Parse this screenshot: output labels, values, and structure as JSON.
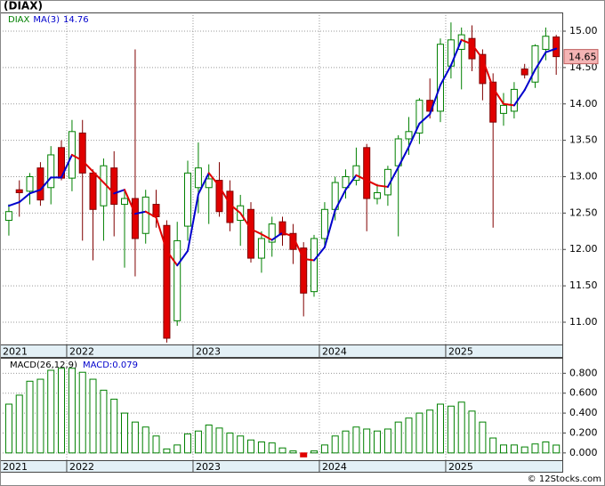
{
  "chart_data": [
    {
      "type": "candlestick",
      "title": "(DIAX)",
      "x": [
        2021.542,
        2021.625,
        2021.708,
        2021.792,
        2021.875,
        2021.958,
        2022.042,
        2022.125,
        2022.208,
        2022.292,
        2022.375,
        2022.458,
        2022.542,
        2022.625,
        2022.708,
        2022.792,
        2022.875,
        2022.958,
        2023.042,
        2023.125,
        2023.208,
        2023.292,
        2023.375,
        2023.458,
        2023.542,
        2023.625,
        2023.708,
        2023.792,
        2023.875,
        2023.958,
        2024.042,
        2024.125,
        2024.208,
        2024.292,
        2024.375,
        2024.458,
        2024.542,
        2024.625,
        2024.708,
        2024.792,
        2024.875,
        2024.958,
        2025.042,
        2025.125,
        2025.208,
        2025.292,
        2025.375,
        2025.458,
        2025.542,
        2025.625,
        2025.708,
        2025.792,
        2025.875
      ],
      "series": [
        {
          "name": "DIAX",
          "up_color": "#008000",
          "down_color": "#e00000",
          "open": [
            12.4,
            12.82,
            12.8,
            13.12,
            12.85,
            13.4,
            12.98,
            13.6,
            13.05,
            12.6,
            13.12,
            12.62,
            12.7,
            12.22,
            12.62,
            12.33,
            11.02,
            12.32,
            12.85,
            12.85,
            12.95,
            12.8,
            12.4,
            12.55,
            11.88,
            12.1,
            12.38,
            12.22,
            12.02,
            11.42,
            12.15,
            12.55,
            12.85,
            12.95,
            13.4,
            12.7,
            12.75,
            13.15,
            13.52,
            13.6,
            14.05,
            13.9,
            14.52,
            14.75,
            14.9,
            14.68,
            14.3,
            13.87,
            13.9,
            14.48,
            14.3,
            14.75,
            14.92
          ],
          "high": [
            12.62,
            12.95,
            13.05,
            13.2,
            13.42,
            13.5,
            13.78,
            13.78,
            13.1,
            13.25,
            13.35,
            12.8,
            14.75,
            12.82,
            12.82,
            12.4,
            12.38,
            13.22,
            13.47,
            13.17,
            13.2,
            12.95,
            12.75,
            12.65,
            12.25,
            12.45,
            12.45,
            12.35,
            12.1,
            12.2,
            12.65,
            13.0,
            13.1,
            13.4,
            13.45,
            12.9,
            13.15,
            13.57,
            13.82,
            14.08,
            14.35,
            14.9,
            15.12,
            15.05,
            15.08,
            14.75,
            14.42,
            14.15,
            14.3,
            14.55,
            14.82,
            15.05,
            14.95
          ],
          "low": [
            12.19,
            12.45,
            12.62,
            12.6,
            12.62,
            12.95,
            12.8,
            12.12,
            11.85,
            12.12,
            12.18,
            11.75,
            11.63,
            12.08,
            12.3,
            10.72,
            10.95,
            12.12,
            12.5,
            12.35,
            12.45,
            12.25,
            12.05,
            11.82,
            11.68,
            11.9,
            12.05,
            11.8,
            11.08,
            11.35,
            12.02,
            12.4,
            12.7,
            12.88,
            12.25,
            12.62,
            12.6,
            12.18,
            13.3,
            13.45,
            13.8,
            13.75,
            14.35,
            14.2,
            14.45,
            14.05,
            12.3,
            13.7,
            13.8,
            14.35,
            14.22,
            14.6,
            14.4
          ],
          "close": [
            12.52,
            12.78,
            13.0,
            12.68,
            13.3,
            12.98,
            13.62,
            13.05,
            12.55,
            13.15,
            12.62,
            12.7,
            12.15,
            12.72,
            12.45,
            10.78,
            12.12,
            13.05,
            13.12,
            12.97,
            12.52,
            12.37,
            12.6,
            11.88,
            12.15,
            12.35,
            12.2,
            12.0,
            11.4,
            12.15,
            12.55,
            12.92,
            13.0,
            13.15,
            12.7,
            12.78,
            13.1,
            13.52,
            13.62,
            14.05,
            13.9,
            14.82,
            14.88,
            14.95,
            14.62,
            14.28,
            13.75,
            13.98,
            14.2,
            14.4,
            14.8,
            14.93,
            14.65
          ]
        },
        {
          "name": "MA(3)",
          "rise_color": "#0000cc",
          "fall_color": "#e00000",
          "values": [
            12.6,
            12.65,
            12.77,
            12.82,
            12.99,
            12.99,
            13.3,
            13.22,
            13.07,
            12.92,
            12.77,
            12.82,
            12.49,
            12.52,
            12.44,
            11.98,
            11.78,
            11.98,
            12.76,
            13.05,
            12.87,
            12.62,
            12.5,
            12.28,
            12.21,
            12.13,
            12.23,
            12.18,
            11.87,
            11.85,
            12.03,
            12.54,
            12.82,
            13.02,
            12.95,
            12.88,
            12.86,
            13.13,
            13.41,
            13.73,
            13.86,
            14.26,
            14.53,
            14.88,
            14.82,
            14.62,
            14.22,
            14.0,
            13.98,
            14.19,
            14.47,
            14.71,
            14.76
          ]
        }
      ],
      "xlim": [
        2021.472,
        2025.923
      ],
      "xticks": [
        {
          "value": 2021.472,
          "label": "2021"
        },
        2022,
        2023,
        2024,
        2025
      ],
      "ylim": [
        10.694,
        15.257
      ],
      "yticks": [
        {
          "value": 11,
          "label": "11.00"
        },
        {
          "value": 11.5,
          "label": "11.50"
        },
        {
          "value": 12,
          "label": "12.00"
        },
        {
          "value": 12.5,
          "label": "12.50"
        },
        {
          "value": 13,
          "label": "13.00"
        },
        {
          "value": 13.5,
          "label": "13.50"
        },
        {
          "value": 14,
          "label": "14.00"
        },
        {
          "value": 14.5,
          "label": "14.50"
        },
        {
          "value": 15,
          "label": "15.00"
        }
      ],
      "grid": true
    },
    {
      "type": "bar",
      "title": "MACD(26,12,9)",
      "legend": "MACD:0.079",
      "x": [
        2021.542,
        2021.625,
        2021.708,
        2021.792,
        2021.875,
        2021.958,
        2022.042,
        2022.125,
        2022.208,
        2022.292,
        2022.375,
        2022.458,
        2022.542,
        2022.625,
        2022.708,
        2022.792,
        2022.875,
        2022.958,
        2023.042,
        2023.125,
        2023.208,
        2023.292,
        2023.375,
        2023.458,
        2023.542,
        2023.625,
        2023.708,
        2023.792,
        2023.875,
        2023.958,
        2024.042,
        2024.125,
        2024.208,
        2024.292,
        2024.375,
        2024.458,
        2024.542,
        2024.625,
        2024.708,
        2024.792,
        2024.875,
        2024.958,
        2025.042,
        2025.125,
        2025.208,
        2025.292,
        2025.375,
        2025.458,
        2025.542,
        2025.625,
        2025.708,
        2025.792,
        2025.875
      ],
      "values": [
        0.49,
        0.58,
        0.72,
        0.74,
        0.83,
        0.85,
        0.85,
        0.81,
        0.74,
        0.63,
        0.54,
        0.4,
        0.31,
        0.26,
        0.17,
        0.04,
        0.08,
        0.19,
        0.22,
        0.28,
        0.25,
        0.2,
        0.17,
        0.13,
        0.11,
        0.1,
        0.05,
        0.02,
        -0.04,
        0.02,
        0.08,
        0.17,
        0.22,
        0.26,
        0.24,
        0.22,
        0.24,
        0.31,
        0.35,
        0.4,
        0.43,
        0.49,
        0.47,
        0.51,
        0.42,
        0.31,
        0.15,
        0.08,
        0.08,
        0.06,
        0.09,
        0.11,
        0.079
      ],
      "up_color": "#008000",
      "down_color": "#e00000",
      "xlim": [
        2021.472,
        2025.923
      ],
      "xticks": [
        {
          "value": 2021.472,
          "label": "2021"
        },
        2022,
        2023,
        2024,
        2025
      ],
      "ylim": [
        -0.073,
        0.955
      ],
      "yticks": [
        {
          "value": 0,
          "label": "0.000"
        },
        {
          "value": 0.2,
          "label": "0.200"
        },
        {
          "value": 0.4,
          "label": "0.400"
        },
        {
          "value": 0.6,
          "label": "0.600"
        },
        {
          "value": 0.8,
          "label": "0.800"
        }
      ],
      "grid": true
    }
  ],
  "footer": "© 12Stocks.com"
}
